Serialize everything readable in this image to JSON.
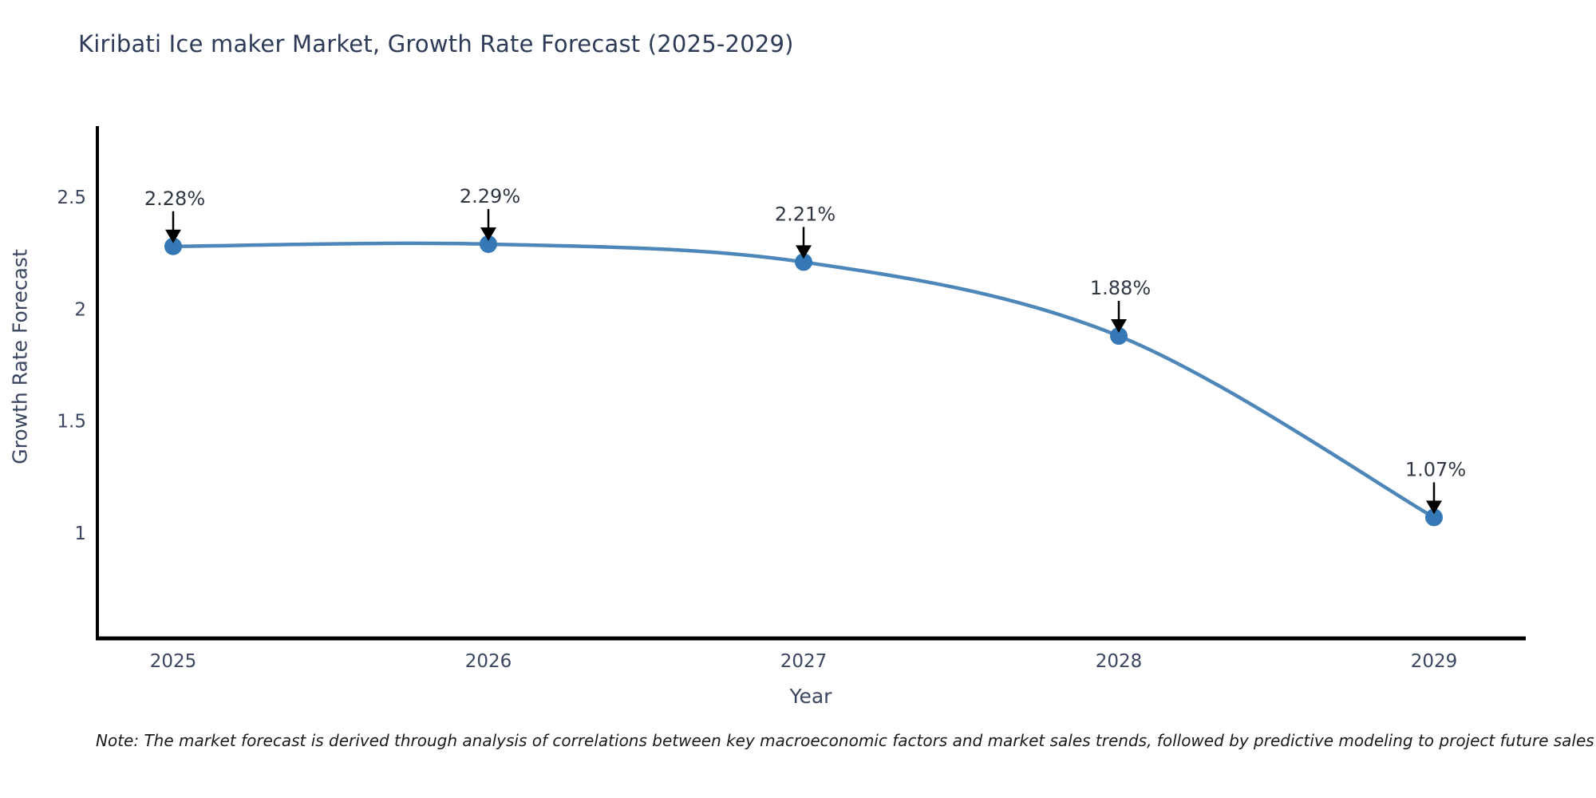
{
  "chart_data": {
    "type": "line",
    "title": "Kiribati Ice maker Market, Growth Rate Forecast (2025-2029)",
    "categories": [
      "2025",
      "2026",
      "2027",
      "2028",
      "2029"
    ],
    "values": [
      2.28,
      2.29,
      2.21,
      1.88,
      1.07
    ],
    "point_labels": [
      "2.28%",
      "2.29%",
      "2.21%",
      "1.88%",
      "1.07%"
    ],
    "xlabel": "Year",
    "ylabel": "Growth Rate Forecast",
    "yticks": [
      2.5,
      2,
      1.5,
      1
    ],
    "ylim": [
      0.53,
      2.81
    ],
    "grid": false,
    "legend_position": "none",
    "line_color": "#4d87ba",
    "marker_color": "#3478b6",
    "annotation_arrow_color": "#000000",
    "axis_color": "#000000"
  },
  "note": "Note: The market forecast is derived through analysis of correlations between key macroeconomic factors and market sales trends, followed by predictive modeling to project future sales"
}
